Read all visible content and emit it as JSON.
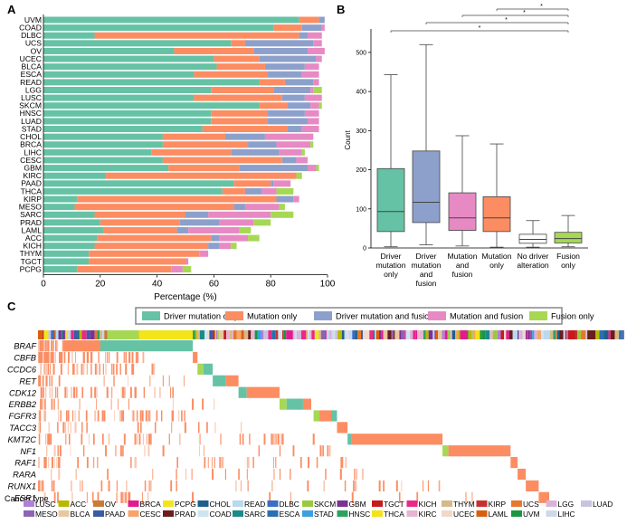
{
  "panel_labels": {
    "a": "A",
    "b": "B",
    "c": "C"
  },
  "colors": {
    "driver_mutation_only": "#66c2a5",
    "mutation_only": "#fc8d62",
    "driver_mutation_and_fusion": "#8da0cb",
    "mutation_and_fusion": "#e78ac3",
    "fusion_only": "#a6d854",
    "no_driver": "#ffffff"
  },
  "chart_data": [
    {
      "id": "A",
      "type": "bar",
      "orientation": "horizontal",
      "stacked": true,
      "xlabel": "Percentage (%)",
      "xlim": [
        0,
        100
      ],
      "xticks": [
        "0",
        "20",
        "40",
        "60",
        "80",
        "100"
      ],
      "series_names": [
        "Driver mutation only",
        "Mutation only",
        "Driver mutation and fusion",
        "Mutation and fusion",
        "Fusion only"
      ],
      "categories": [
        "UVM",
        "COAD",
        "DLBC",
        "UCS",
        "OV",
        "UCEC",
        "BLCA",
        "ESCA",
        "READ",
        "LGG",
        "LUSC",
        "SKCM",
        "HNSC",
        "LUAD",
        "STAD",
        "CHOL",
        "BRCA",
        "LIHC",
        "CESC",
        "GBM",
        "KIRC",
        "PAAD",
        "THCA",
        "KIRP",
        "MESO",
        "SARC",
        "PRAD",
        "LAML",
        "ACC",
        "KICH",
        "THYM",
        "TGCT",
        "PCPG"
      ],
      "values": [
        [
          90,
          7,
          2,
          0,
          0
        ],
        [
          81,
          10,
          7,
          1,
          0
        ],
        [
          18,
          72,
          3,
          5,
          0
        ],
        [
          66,
          5,
          24,
          3,
          0
        ],
        [
          46,
          28,
          19,
          6,
          0
        ],
        [
          60,
          16,
          20,
          2,
          0
        ],
        [
          61,
          17,
          14,
          5,
          0
        ],
        [
          53,
          26,
          12,
          6,
          0
        ],
        [
          76,
          9,
          10,
          2,
          0
        ],
        [
          59,
          22,
          13,
          1,
          3
        ],
        [
          53,
          31,
          8,
          6,
          0
        ],
        [
          76,
          10,
          8,
          3,
          1
        ],
        [
          59,
          20,
          13,
          5,
          0
        ],
        [
          59,
          20,
          14,
          4,
          0
        ],
        [
          56,
          30,
          5,
          6,
          0
        ],
        [
          42,
          22,
          14,
          17,
          0
        ],
        [
          42,
          30,
          10,
          12,
          1
        ],
        [
          38,
          28,
          17,
          8,
          1
        ],
        [
          42,
          42,
          5,
          4,
          0
        ],
        [
          44,
          25,
          24,
          3,
          1
        ],
        [
          22,
          67,
          0,
          0,
          2
        ],
        [
          67,
          13,
          1,
          6,
          0
        ],
        [
          63,
          8,
          6,
          5,
          6
        ],
        [
          12,
          70,
          6,
          2,
          0
        ],
        [
          11,
          56,
          4,
          12,
          2
        ],
        [
          18,
          32,
          8,
          22,
          8
        ],
        [
          20,
          28,
          14,
          12,
          6
        ],
        [
          21,
          26,
          4,
          18,
          4
        ],
        [
          19,
          40,
          3,
          10,
          4
        ],
        [
          18,
          40,
          4,
          4,
          2
        ],
        [
          16,
          39,
          0,
          3,
          0
        ],
        [
          16,
          34,
          0,
          1,
          0
        ],
        [
          12,
          33,
          0,
          4,
          3
        ]
      ]
    },
    {
      "id": "B",
      "type": "box",
      "ylabel": "Count",
      "ylim": [
        0,
        560
      ],
      "yticks": [
        "0",
        "100",
        "200",
        "300",
        "400",
        "500"
      ],
      "categories": [
        [
          "Driver",
          "mutation",
          "only"
        ],
        [
          "Driver",
          "mutation",
          "and",
          "fusion"
        ],
        [
          "Mutation",
          "and",
          "fusion"
        ],
        [
          "Mutation",
          "only"
        ],
        [
          "No driver",
          "alteration"
        ],
        [
          "Fusion",
          "only"
        ]
      ],
      "boxes": [
        {
          "min": 3,
          "q1": 42,
          "median": 93,
          "q3": 203,
          "max": 443,
          "color": "#66c2a5"
        },
        {
          "min": 8,
          "q1": 65,
          "median": 117,
          "q3": 248,
          "max": 520,
          "color": "#8da0cb"
        },
        {
          "min": 5,
          "q1": 45,
          "median": 77,
          "q3": 141,
          "max": 287,
          "color": "#e78ac3"
        },
        {
          "min": 2,
          "q1": 42,
          "median": 77,
          "q3": 131,
          "max": 266,
          "color": "#fc8d62"
        },
        {
          "min": 2,
          "q1": 12,
          "median": 22,
          "q3": 35,
          "max": 70,
          "color": "#ffffff"
        },
        {
          "min": 3,
          "q1": 13,
          "median": 24,
          "q3": 40,
          "max": 83,
          "color": "#a6d854"
        }
      ],
      "significance": [
        {
          "from": 0,
          "to": 5,
          "label": "*"
        },
        {
          "from": 1,
          "to": 5,
          "label": "*"
        },
        {
          "from": 2,
          "to": 5,
          "label": "*"
        },
        {
          "from": 3,
          "to": 5,
          "label": "*"
        }
      ]
    },
    {
      "id": "C",
      "type": "oncoprint",
      "legend": [
        "Driver mutation only",
        "Mutation only",
        "Driver mutation and fusion",
        "Mutation and fusion",
        "Fusion only"
      ],
      "genes": [
        "BRAF",
        "CBFB",
        "CCDC6",
        "RET",
        "CDK12",
        "ERBB2",
        "FGFR3",
        "TACC3",
        "KMT2C",
        "NF1",
        "RAF1",
        "RARA",
        "RUNX1",
        "ESR1"
      ],
      "blocks": [
        {
          "gene": "BRAF",
          "start": 0.106,
          "end": 0.264,
          "type": "driver_mutation_only"
        },
        {
          "gene": "BRAF",
          "start": 0.042,
          "end": 0.106,
          "type": "mutation_only"
        },
        {
          "gene": "CBFB",
          "start": 0.264,
          "end": 0.272,
          "type": "mutation_only"
        },
        {
          "gene": "CCDC6",
          "start": 0.272,
          "end": 0.282,
          "type": "fusion_only"
        },
        {
          "gene": "CCDC6",
          "start": 0.282,
          "end": 0.298,
          "type": "driver_mutation_only"
        },
        {
          "gene": "RET",
          "start": 0.298,
          "end": 0.32,
          "type": "driver_mutation_only"
        },
        {
          "gene": "RET",
          "start": 0.32,
          "end": 0.342,
          "type": "mutation_only"
        },
        {
          "gene": "CDK12",
          "start": 0.342,
          "end": 0.356,
          "type": "driver_mutation_only"
        },
        {
          "gene": "CDK12",
          "start": 0.356,
          "end": 0.412,
          "type": "mutation_only"
        },
        {
          "gene": "ERBB2",
          "start": 0.412,
          "end": 0.424,
          "type": "fusion_only"
        },
        {
          "gene": "ERBB2",
          "start": 0.424,
          "end": 0.452,
          "type": "driver_mutation_only"
        },
        {
          "gene": "ERBB2",
          "start": 0.452,
          "end": 0.466,
          "type": "mutation_only"
        },
        {
          "gene": "FGFR3",
          "start": 0.47,
          "end": 0.48,
          "type": "fusion_only"
        },
        {
          "gene": "FGFR3",
          "start": 0.48,
          "end": 0.5,
          "type": "mutation_only"
        },
        {
          "gene": "FGFR3",
          "start": 0.5,
          "end": 0.51,
          "type": "driver_mutation_only"
        },
        {
          "gene": "TACC3",
          "start": 0.51,
          "end": 0.528,
          "type": "mutation_only"
        },
        {
          "gene": "KMT2C",
          "start": 0.528,
          "end": 0.534,
          "type": "driver_mutation_only"
        },
        {
          "gene": "KMT2C",
          "start": 0.534,
          "end": 0.69,
          "type": "mutation_only"
        },
        {
          "gene": "NF1",
          "start": 0.69,
          "end": 0.7,
          "type": "fusion_only"
        },
        {
          "gene": "NF1",
          "start": 0.7,
          "end": 0.806,
          "type": "mutation_only"
        },
        {
          "gene": "RAF1",
          "start": 0.806,
          "end": 0.818,
          "type": "mutation_only"
        },
        {
          "gene": "RARA",
          "start": 0.818,
          "end": 0.832,
          "type": "mutation_only"
        },
        {
          "gene": "RUNX1",
          "start": 0.832,
          "end": 0.854,
          "type": "mutation_only"
        },
        {
          "gene": "ESR1",
          "start": 0.854,
          "end": 0.872,
          "type": "mutation_only"
        }
      ],
      "cancer_type_label": "Cancer type",
      "cancer_types": [
        {
          "name": "LUSC",
          "color": "#b07fd6"
        },
        {
          "name": "ACC",
          "color": "#b8b800"
        },
        {
          "name": "OV",
          "color": "#c77b3a"
        },
        {
          "name": "BRCA",
          "color": "#e01c8e"
        },
        {
          "name": "PCPG",
          "color": "#f2e51a"
        },
        {
          "name": "CHOL",
          "color": "#1f5f8b"
        },
        {
          "name": "READ",
          "color": "#b8d9ee"
        },
        {
          "name": "DLBC",
          "color": "#3a6fc4"
        },
        {
          "name": "SKCM",
          "color": "#9ac93e"
        },
        {
          "name": "GBM",
          "color": "#7b3294"
        },
        {
          "name": "TGCT",
          "color": "#c51b1b"
        },
        {
          "name": "KICH",
          "color": "#e7298a"
        },
        {
          "name": "THYM",
          "color": "#d6b98a"
        },
        {
          "name": "KIRP",
          "color": "#c6322e"
        },
        {
          "name": "UCS",
          "color": "#e6772c"
        },
        {
          "name": "LGG",
          "color": "#d9b3d9"
        },
        {
          "name": "LUAD",
          "color": "#c9c3e0"
        },
        {
          "name": "MESO",
          "color": "#8e63b5"
        },
        {
          "name": "BLCA",
          "color": "#e8c7a0"
        },
        {
          "name": "PAAD",
          "color": "#3b5ba5"
        },
        {
          "name": "CESC",
          "color": "#f6a46b"
        },
        {
          "name": "PRAD",
          "color": "#6b1d1d"
        },
        {
          "name": "COAD",
          "color": "#cde4f1"
        },
        {
          "name": "SARC",
          "color": "#1d8a8a"
        },
        {
          "name": "ESCA",
          "color": "#2a6fb0"
        },
        {
          "name": "STAD",
          "color": "#3aa0e0"
        },
        {
          "name": "HNSC",
          "color": "#2ca25f"
        },
        {
          "name": "THCA",
          "color": "#f4e21a"
        },
        {
          "name": "KIRC",
          "color": "#e7b3d0"
        },
        {
          "name": "UCEC",
          "color": "#f0d9c8"
        },
        {
          "name": "LAML",
          "color": "#d95f0e"
        },
        {
          "name": "UVM",
          "color": "#1a9641"
        },
        {
          "name": "LIHC",
          "color": "#cfd8ea"
        }
      ]
    }
  ]
}
